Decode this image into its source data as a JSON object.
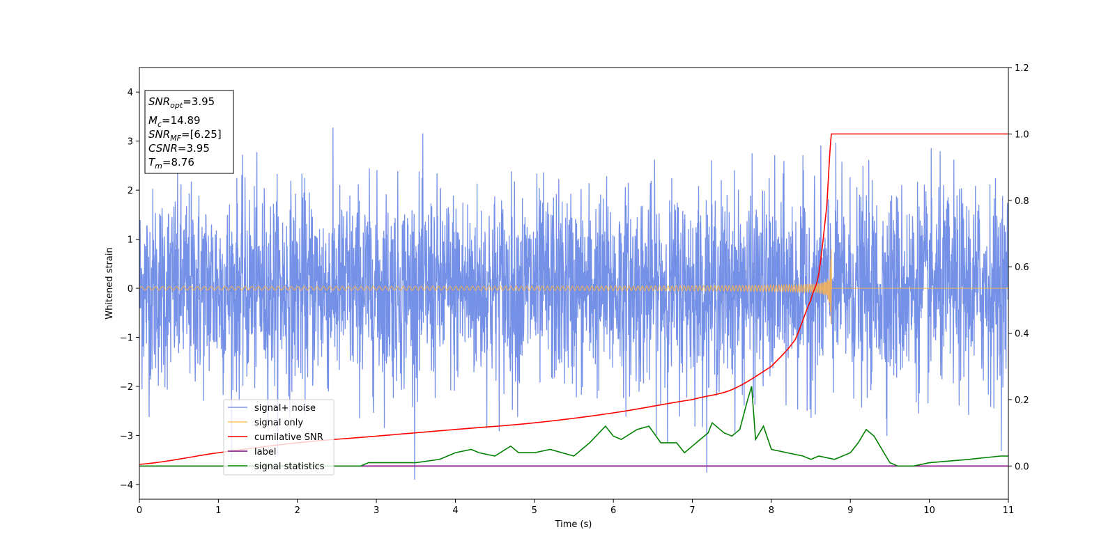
{
  "chart_data": {
    "type": "line",
    "xlabel": "Time (s)",
    "ylabel": "Whitened strain",
    "xlim": [
      0,
      11
    ],
    "ylim_left": [
      -4.3,
      4.5
    ],
    "ylim_right": [
      -0.1,
      1.2
    ],
    "x_ticks": [
      "0",
      "1",
      "2",
      "3",
      "4",
      "5",
      "6",
      "7",
      "8",
      "9",
      "10",
      "11"
    ],
    "y_left_ticks": [
      "4",
      "3",
      "2",
      "1",
      "0",
      "−1",
      "−2",
      "−3",
      "−4"
    ],
    "y_right_ticks": [
      "1.2",
      "1.0",
      "0.8",
      "0.6",
      "0.4",
      "0.2",
      "0.0"
    ],
    "grid": false,
    "legend_position": "lower-left",
    "info_box": {
      "snr_opt": "=3.95",
      "mc": "=14.89",
      "snr_mf": "=[6.25]",
      "csnr": "=3.95",
      "tm": "=8.76"
    },
    "series": [
      {
        "name": "signal+ noise",
        "color": "#6d8ae6",
        "axis": "left",
        "description_values": "whitened noise, amplitude ~±2.5, peaks ~4.2"
      },
      {
        "name": "signal only",
        "color": "#ffb347",
        "axis": "left",
        "chirp_end_time": 8.76,
        "max_amplitude": 0.85
      },
      {
        "name": "cumilative SNR",
        "color": "#ff0000",
        "axis": "right",
        "x": [
          0,
          1,
          2,
          3,
          4,
          5,
          6,
          7,
          7.5,
          8,
          8.3,
          8.5,
          8.6,
          8.7,
          8.76,
          11
        ],
        "y": [
          0.005,
          0.04,
          0.07,
          0.09,
          0.11,
          0.13,
          0.16,
          0.2,
          0.23,
          0.3,
          0.38,
          0.5,
          0.58,
          0.78,
          1.0,
          1.0
        ]
      },
      {
        "name": "label",
        "color": "#800080",
        "axis": "right",
        "x": [
          0,
          11
        ],
        "y": [
          0.0,
          0.0
        ]
      },
      {
        "name": "signal statistics",
        "color": "#008000",
        "axis": "right",
        "x": [
          0,
          1,
          2,
          2.8,
          2.9,
          3.5,
          3.8,
          4.0,
          4.2,
          4.3,
          4.5,
          4.7,
          4.8,
          5.0,
          5.2,
          5.5,
          5.7,
          5.9,
          6.0,
          6.1,
          6.3,
          6.45,
          6.6,
          6.8,
          6.9,
          7.0,
          7.2,
          7.25,
          7.4,
          7.5,
          7.6,
          7.7,
          7.75,
          7.8,
          7.9,
          8.0,
          8.2,
          8.4,
          8.5,
          8.6,
          8.8,
          9.0,
          9.1,
          9.2,
          9.3,
          9.5,
          9.6,
          9.8,
          10.0,
          10.5,
          10.9,
          11.0
        ],
        "y": [
          0.0,
          0.0,
          0.0,
          0.0,
          0.01,
          0.01,
          0.02,
          0.04,
          0.05,
          0.04,
          0.03,
          0.06,
          0.04,
          0.04,
          0.05,
          0.03,
          0.07,
          0.12,
          0.09,
          0.08,
          0.11,
          0.12,
          0.07,
          0.07,
          0.04,
          0.06,
          0.1,
          0.13,
          0.1,
          0.09,
          0.11,
          0.2,
          0.24,
          0.08,
          0.12,
          0.05,
          0.04,
          0.03,
          0.02,
          0.03,
          0.02,
          0.04,
          0.07,
          0.11,
          0.09,
          0.01,
          0.0,
          0.0,
          0.01,
          0.02,
          0.03,
          0.03
        ]
      }
    ]
  }
}
